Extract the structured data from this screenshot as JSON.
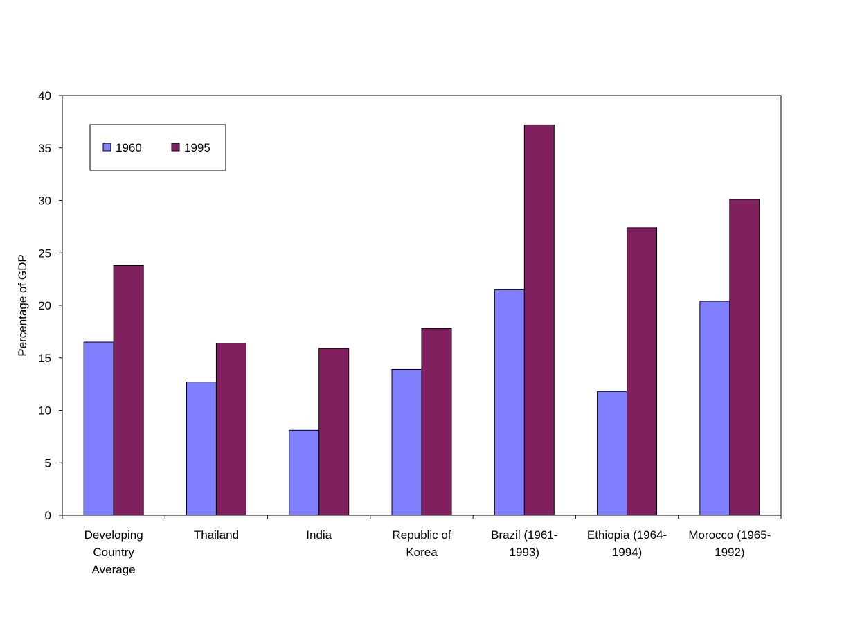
{
  "chart_data": {
    "type": "bar",
    "title": "",
    "xlabel": "",
    "ylabel": "Percentage of GDP",
    "ylim": [
      0,
      40
    ],
    "yticks": [
      0,
      5,
      10,
      15,
      20,
      25,
      30,
      35,
      40
    ],
    "grid": false,
    "legend_position": "top-left",
    "categories": [
      [
        "Developing",
        "Country",
        "Average"
      ],
      [
        "Thailand"
      ],
      [
        "India"
      ],
      [
        "Republic of",
        "Korea"
      ],
      [
        "Brazil (1961-",
        "1993)"
      ],
      [
        "Ethiopia (1964-",
        "1994)"
      ],
      [
        "Morocco (1965-",
        "1992)"
      ]
    ],
    "series": [
      {
        "name": "1960",
        "color": "#8080ff",
        "values": [
          16.5,
          12.7,
          8.1,
          13.9,
          21.5,
          11.8,
          20.4
        ]
      },
      {
        "name": "1995",
        "color": "#80205f",
        "values": [
          23.8,
          16.4,
          15.9,
          17.8,
          37.2,
          27.4,
          30.1
        ]
      }
    ]
  }
}
